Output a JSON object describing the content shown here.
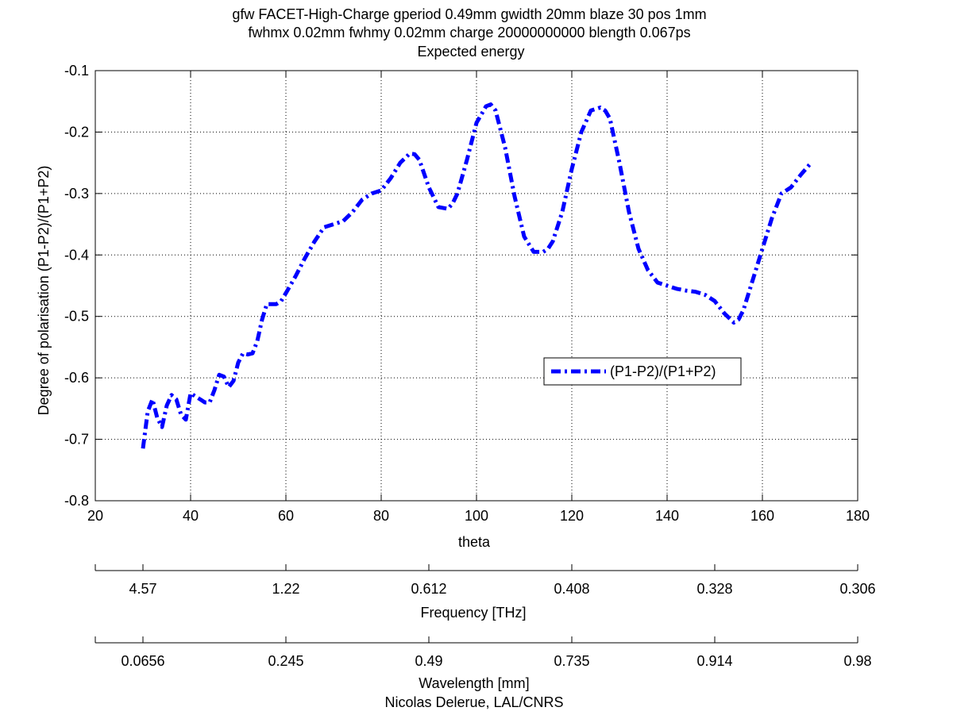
{
  "chart_data": {
    "type": "line",
    "title_lines": [
      "gfw FACET-High-Charge gperiod 0.49mm gwidth 20mm blaze 30 pos 1mm",
      "fwhmx 0.02mm fwhmy 0.02mm charge 20000000000 blength 0.067ps",
      "Expected energy"
    ],
    "xlabel": "theta",
    "ylabel": "Degree of polarisation (P1-P2)/(P1+P2)",
    "xlim": [
      20,
      180
    ],
    "ylim": [
      -0.8,
      -0.1
    ],
    "xticks": [
      20,
      40,
      60,
      80,
      100,
      120,
      140,
      160,
      180
    ],
    "xtick_labels": [
      "20",
      "40",
      "60",
      "80",
      "100",
      "120",
      "140",
      "160",
      "180"
    ],
    "yticks": [
      -0.8,
      -0.7,
      -0.6,
      -0.5,
      -0.4,
      -0.3,
      -0.2,
      -0.1
    ],
    "ytick_labels": [
      "-0.8",
      "-0.7",
      "-0.6",
      "-0.5",
      "-0.4",
      "-0.3",
      "-0.2",
      "-0.1"
    ],
    "grid": true,
    "legend_position": "center-right",
    "series": [
      {
        "name": "(P1-P2)/(P1+P2)",
        "color": "#0000ff",
        "x": [
          30,
          31,
          32,
          33,
          34,
          35,
          36,
          37,
          38,
          39,
          40,
          41,
          42,
          43,
          44,
          45,
          46,
          47,
          48,
          49,
          50,
          51,
          52,
          53,
          54,
          55,
          56,
          57,
          58,
          59,
          60,
          62,
          64,
          66,
          68,
          70,
          72,
          74,
          76,
          78,
          80,
          82,
          84,
          86,
          87,
          88,
          90,
          92,
          94,
          95,
          96,
          98,
          100,
          102,
          103,
          104,
          106,
          108,
          110,
          112,
          114,
          115,
          116,
          118,
          120,
          122,
          124,
          126,
          127,
          128,
          130,
          132,
          134,
          136,
          138,
          140,
          142,
          144,
          146,
          148,
          150,
          152,
          154,
          155,
          156,
          158,
          160,
          162,
          164,
          166,
          168,
          170
        ],
        "y": [
          -0.715,
          -0.655,
          -0.635,
          -0.665,
          -0.68,
          -0.645,
          -0.628,
          -0.635,
          -0.66,
          -0.668,
          -0.625,
          -0.63,
          -0.635,
          -0.64,
          -0.64,
          -0.62,
          -0.595,
          -0.598,
          -0.615,
          -0.605,
          -0.575,
          -0.56,
          -0.562,
          -0.56,
          -0.54,
          -0.505,
          -0.48,
          -0.48,
          -0.48,
          -0.475,
          -0.462,
          -0.435,
          -0.405,
          -0.378,
          -0.355,
          -0.35,
          -0.345,
          -0.33,
          -0.31,
          -0.3,
          -0.295,
          -0.275,
          -0.25,
          -0.235,
          -0.236,
          -0.245,
          -0.29,
          -0.322,
          -0.325,
          -0.316,
          -0.3,
          -0.245,
          -0.185,
          -0.158,
          -0.155,
          -0.165,
          -0.225,
          -0.305,
          -0.37,
          -0.395,
          -0.395,
          -0.39,
          -0.378,
          -0.33,
          -0.26,
          -0.2,
          -0.165,
          -0.16,
          -0.165,
          -0.178,
          -0.25,
          -0.33,
          -0.39,
          -0.425,
          -0.445,
          -0.45,
          -0.455,
          -0.458,
          -0.46,
          -0.465,
          -0.475,
          -0.495,
          -0.51,
          -0.505,
          -0.49,
          -0.44,
          -0.39,
          -0.34,
          -0.3,
          -0.29,
          -0.27,
          -0.252
        ]
      }
    ],
    "secondary_axes": [
      {
        "label": "Frequency [THz]",
        "tick_labels": [
          "4.57",
          "1.22",
          "0.612",
          "0.408",
          "0.328",
          "0.306"
        ]
      },
      {
        "label": "Wavelength [mm]",
        "tick_labels": [
          "0.0656",
          "0.245",
          "0.49",
          "0.735",
          "0.914",
          "0.98"
        ]
      }
    ],
    "secondary_tick_theta": [
      30,
      60,
      90,
      120,
      150,
      180
    ],
    "footer": "Nicolas Delerue, LAL/CNRS"
  }
}
